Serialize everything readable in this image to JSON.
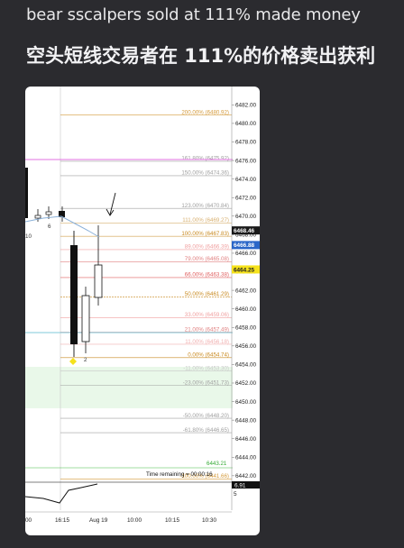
{
  "captions": {
    "english": "bear sscalpers sold at 111% made money",
    "chinese": "空头短线交易者在 111%的价格卖出获利"
  },
  "chart": {
    "y_axis_min": 6441.5,
    "y_axis_max": 6483.2,
    "y_axis_ticks": [
      "6482.00",
      "6480.00",
      "6478.00",
      "6476.00",
      "6474.00",
      "6472.00",
      "6470.00",
      "6468.00",
      "6466.00",
      "6464.00",
      "6462.00",
      "6460.00",
      "6458.00",
      "6456.00",
      "6454.00",
      "6452.00",
      "6450.00",
      "6448.00",
      "6446.00",
      "6444.00",
      "6442.00"
    ],
    "fib_levels": [
      {
        "label": "200.00% (6480.92)",
        "price": 6480.92,
        "color": "#d49a3a"
      },
      {
        "label": "161.80% (6475.92)",
        "price": 6475.92,
        "color": "#a0a0a0"
      },
      {
        "label": "150.00% (6474.36)",
        "price": 6474.36,
        "color": "#a0a0a0"
      },
      {
        "label": "123.00% (6470.84)",
        "price": 6470.84,
        "color": "#a0a0a0"
      },
      {
        "label": "111.00% (6469.27)",
        "price": 6469.27,
        "color": "#d8b070"
      },
      {
        "label": "100.00% (6467.83)",
        "price": 6467.83,
        "color": "#c8891f"
      },
      {
        "label": "89.00% (6466.39)",
        "price": 6466.39,
        "color": "#f0a0a0"
      },
      {
        "label": "79.00% (6465.08)",
        "price": 6465.08,
        "color": "#e08080"
      },
      {
        "label": "66.00% (6463.38)",
        "price": 6463.38,
        "color": "#e06060"
      },
      {
        "label": "50.00% (6461.29)",
        "price": 6461.29,
        "color": "#c8891f"
      },
      {
        "label": "33.00% (6459.06)",
        "price": 6459.06,
        "color": "#f0a0a0"
      },
      {
        "label": "21.00% (6457.49)",
        "price": 6457.49,
        "color": "#e08080"
      },
      {
        "label": "11.00% (6456.18)",
        "price": 6456.18,
        "color": "#f0b0b0"
      },
      {
        "label": "0.00% (6454.74)",
        "price": 6454.74,
        "color": "#c8891f"
      },
      {
        "label": "-11.00% (6453.30)",
        "price": 6453.3,
        "color": "#c8c8c8"
      },
      {
        "label": "-23.00% (6451.73)",
        "price": 6451.73,
        "color": "#a0a0a0"
      },
      {
        "label": "-50.00% (6448.20)",
        "price": 6448.2,
        "color": "#a0a0a0"
      },
      {
        "label": "-61.80% (6446.65)",
        "price": 6446.65,
        "color": "#a0a0a0"
      },
      {
        "label": "-100.00% (6441.66)",
        "price": 6441.66,
        "color": "#d49a3a"
      }
    ],
    "price_tags": [
      {
        "label": "6468.46",
        "price": 6468.46,
        "bg": "#1a1a1a",
        "fg": "#ffffff"
      },
      {
        "label": "6466.88",
        "price": 6466.88,
        "bg": "#2a66c8",
        "fg": "#ffffff"
      },
      {
        "label": "6464.25",
        "price": 6464.25,
        "bg": "#f5e21c",
        "fg": "#222222"
      }
    ],
    "green_level_label": "6443.21",
    "time_remaining": "Time remaining = 00:00:16",
    "lower_panel_tag": "6.91",
    "lower_panel_tick": "5",
    "bar_labels": [
      "10",
      "2",
      "6"
    ],
    "time_ticks": [
      "00",
      "16:15",
      "Aug 19",
      "10:00",
      "10:15",
      "10:30"
    ]
  },
  "colors": {
    "background": "#2b2b2f",
    "chart_bg": "#ffffff",
    "magenta_line": "#e070e0",
    "cyan_line": "#7fc8d8",
    "green_zone": "#e9f8e9",
    "green_label": "#33aa33",
    "ma_line": "#8ab0d8"
  }
}
